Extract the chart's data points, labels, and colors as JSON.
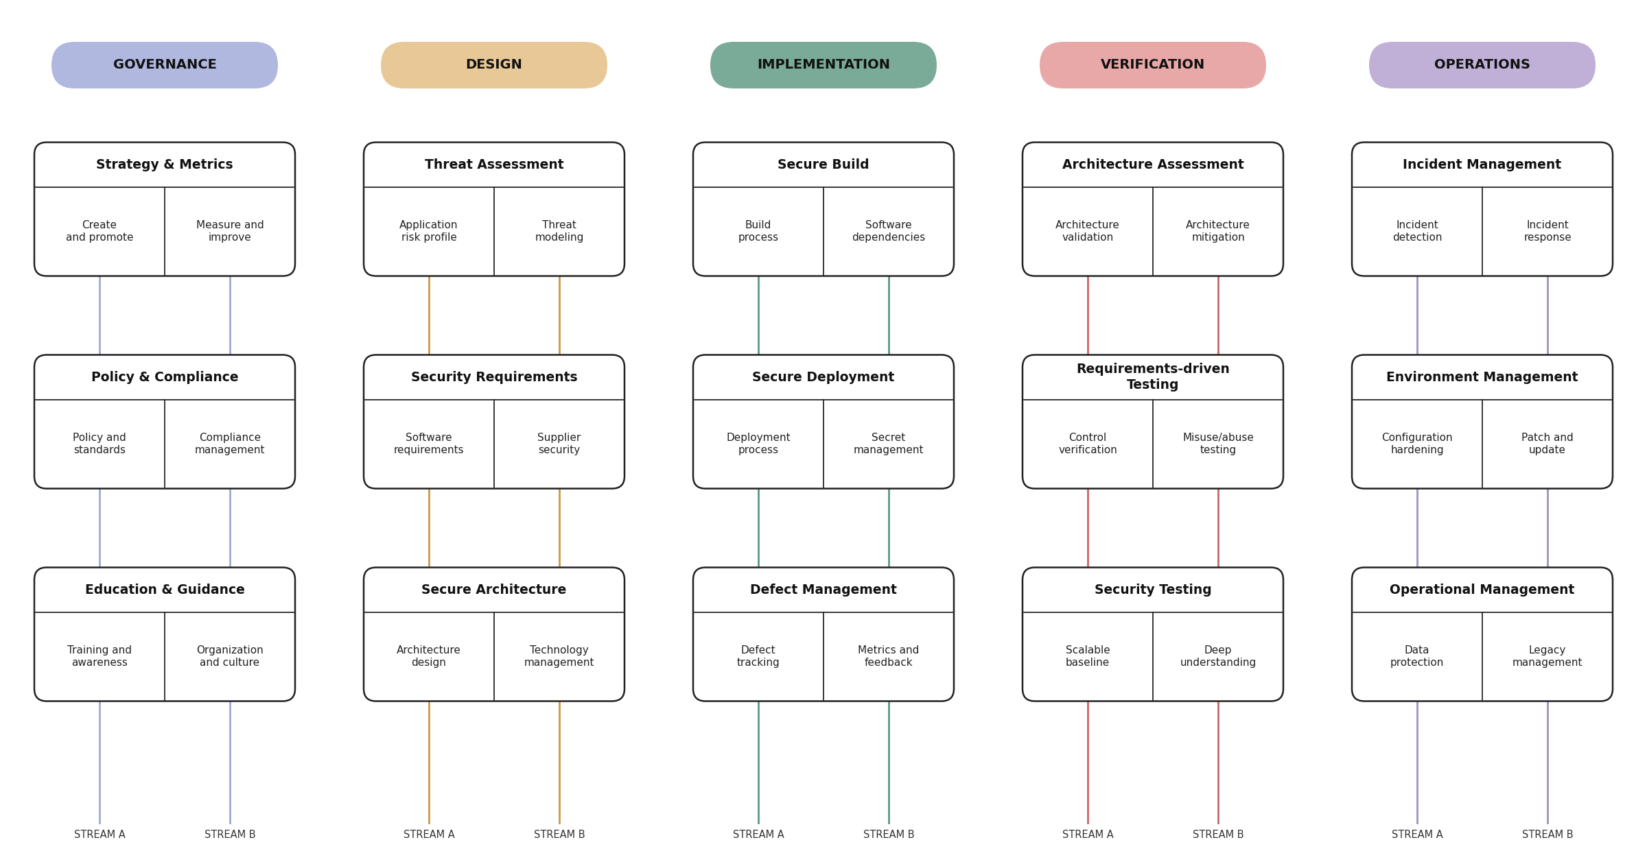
{
  "background_color": "#ffffff",
  "columns": [
    {
      "name": "GOVERNANCE",
      "pill_color": "#b0b8e0",
      "connector_color": "#a0a8d0",
      "practices": [
        {
          "title": "Strategy & Metrics",
          "stream_a": "Create\nand promote",
          "stream_b": "Measure and\nimprove"
        },
        {
          "title": "Policy & Compliance",
          "stream_a": "Policy and\nstandards",
          "stream_b": "Compliance\nmanagement"
        },
        {
          "title": "Education & Guidance",
          "stream_a": "Training and\nawareness",
          "stream_b": "Organization\nand culture"
        }
      ]
    },
    {
      "name": "DESIGN",
      "pill_color": "#e8c896",
      "connector_color": "#cc9944",
      "practices": [
        {
          "title": "Threat Assessment",
          "stream_a": "Application\nrisk profile",
          "stream_b": "Threat\nmodeling"
        },
        {
          "title": "Security Requirements",
          "stream_a": "Software\nrequirements",
          "stream_b": "Supplier\nsecurity"
        },
        {
          "title": "Secure Architecture",
          "stream_a": "Architecture\ndesign",
          "stream_b": "Technology\nmanagement"
        }
      ]
    },
    {
      "name": "IMPLEMENTATION",
      "pill_color": "#7aaa98",
      "connector_color": "#5a9a80",
      "practices": [
        {
          "title": "Secure Build",
          "stream_a": "Build\nprocess",
          "stream_b": "Software\ndependencies"
        },
        {
          "title": "Secure Deployment",
          "stream_a": "Deployment\nprocess",
          "stream_b": "Secret\nmanagement"
        },
        {
          "title": "Defect Management",
          "stream_a": "Defect\ntracking",
          "stream_b": "Metrics and\nfeedback"
        }
      ]
    },
    {
      "name": "VERIFICATION",
      "pill_color": "#e8a8a8",
      "connector_color": "#cc6666",
      "practices": [
        {
          "title": "Architecture Assessment",
          "stream_a": "Architecture\nvalidation",
          "stream_b": "Architecture\nmitigation"
        },
        {
          "title": "Requirements-driven\nTesting",
          "stream_a": "Control\nverification",
          "stream_b": "Misuse/abuse\ntesting"
        },
        {
          "title": "Security Testing",
          "stream_a": "Scalable\nbaseline",
          "stream_b": "Deep\nunderstanding"
        }
      ]
    },
    {
      "name": "OPERATIONS",
      "pill_color": "#c0b0d8",
      "connector_color": "#a090c0",
      "practices": [
        {
          "title": "Incident Management",
          "stream_a": "Incident\ndetection",
          "stream_b": "Incident\nresponse"
        },
        {
          "title": "Environment Management",
          "stream_a": "Configuration\nhardening",
          "stream_b": "Patch and\nupdate"
        },
        {
          "title": "Operational Management",
          "stream_a": "Data\nprotection",
          "stream_b": "Legacy\nmanagement"
        }
      ]
    }
  ],
  "stream_label_a": "STREAM A",
  "stream_label_b": "STREAM B"
}
